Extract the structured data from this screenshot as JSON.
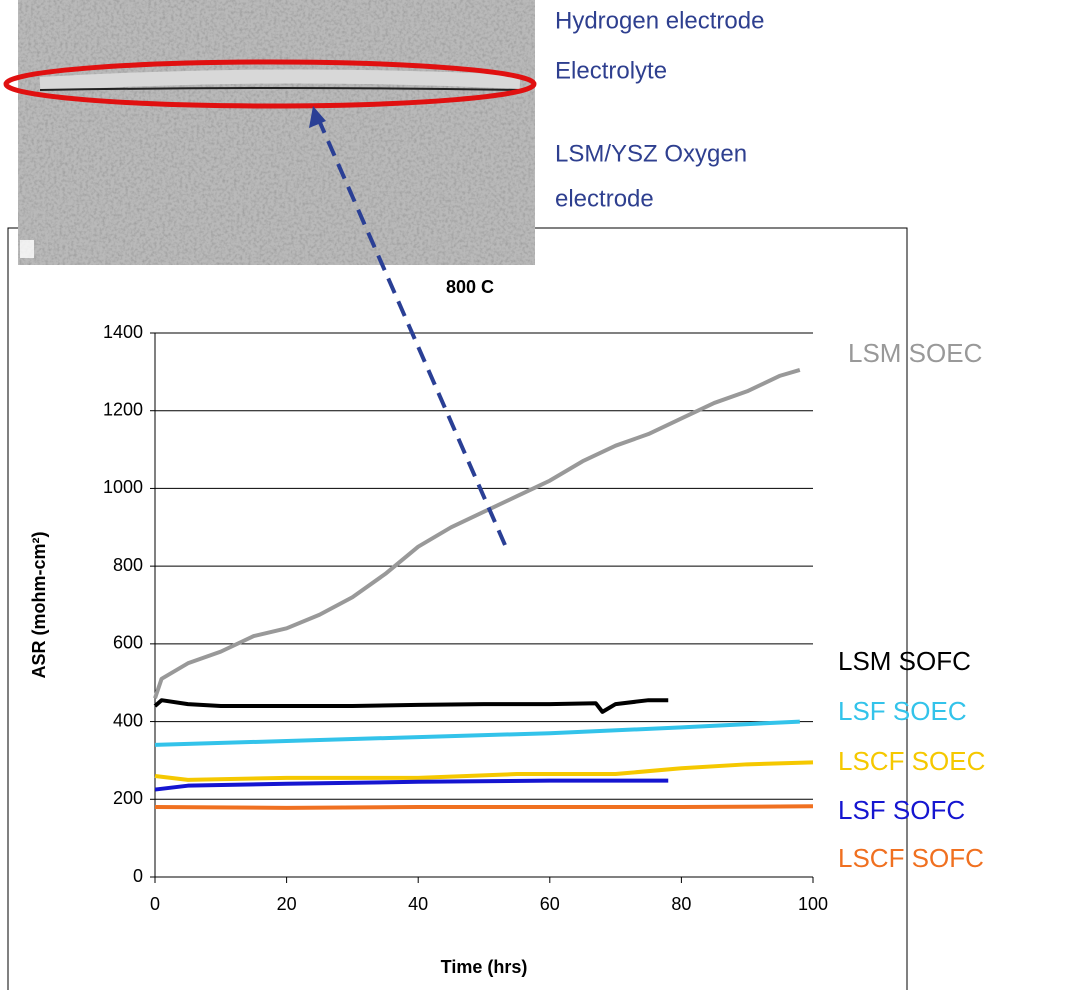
{
  "chart_data": {
    "type": "line",
    "annotations": [
      "Hydrogen electrode",
      "Electrolyte",
      "LSM/YSZ Oxygen",
      "electrode",
      "800 C"
    ],
    "x_label": "Time (hrs)",
    "y_label": "ASR (mohm-cm²)",
    "xlim": [
      0,
      100
    ],
    "xticks": [
      0,
      20,
      40,
      60,
      80,
      100
    ],
    "ylim": [
      0,
      1400
    ],
    "yticks": [
      0,
      200,
      400,
      600,
      800,
      1000,
      1200,
      1400
    ],
    "grid": true,
    "series": [
      {
        "name": "LSM SOEC",
        "color": "#999999",
        "x": [
          0,
          1,
          5,
          10,
          15,
          20,
          25,
          30,
          35,
          40,
          45,
          50,
          55,
          60,
          65,
          70,
          75,
          80,
          85,
          90,
          95,
          98
        ],
        "values": [
          460,
          510,
          550,
          580,
          620,
          640,
          675,
          720,
          780,
          850,
          900,
          940,
          980,
          1020,
          1070,
          1110,
          1140,
          1180,
          1220,
          1250,
          1290,
          1305
        ]
      },
      {
        "name": "LSM SOFC",
        "color": "#000000",
        "x": [
          0,
          1,
          5,
          10,
          20,
          30,
          40,
          50,
          60,
          67,
          68,
          70,
          75,
          78
        ],
        "values": [
          440,
          455,
          445,
          440,
          440,
          440,
          443,
          445,
          445,
          447,
          425,
          445,
          455,
          455
        ]
      },
      {
        "name": "LSF SOEC",
        "color": "#33c3ea",
        "x": [
          0,
          20,
          40,
          60,
          80,
          98
        ],
        "values": [
          340,
          350,
          360,
          370,
          385,
          400
        ]
      },
      {
        "name": "LSCF SOEC",
        "color": "#f5c800",
        "x": [
          0,
          5,
          20,
          40,
          55,
          70,
          80,
          90,
          100
        ],
        "values": [
          260,
          250,
          255,
          255,
          265,
          265,
          280,
          290,
          295
        ]
      },
      {
        "name": "LSF SOFC",
        "color": "#1515d0",
        "x": [
          0,
          5,
          20,
          40,
          60,
          78
        ],
        "values": [
          225,
          235,
          240,
          245,
          248,
          248
        ]
      },
      {
        "name": "LSCF SOFC",
        "color": "#f07020",
        "x": [
          0,
          20,
          40,
          60,
          80,
          100
        ],
        "values": [
          180,
          178,
          180,
          180,
          180,
          182
        ]
      }
    ]
  }
}
